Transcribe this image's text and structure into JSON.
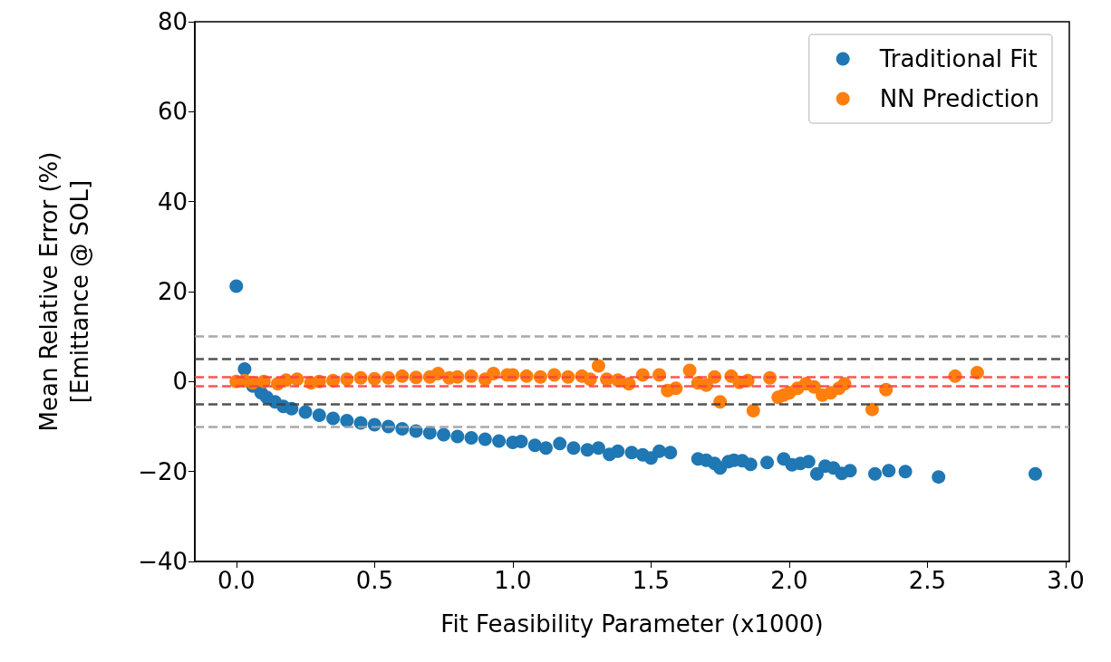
{
  "chart_data": {
    "type": "scatter",
    "xlabel": "Fit Feasibility Parameter (x1000)",
    "ylabel": "Mean Relative Error (%)\n[Emittance @ SOL]",
    "xlim": [
      -0.15,
      3.013
    ],
    "xticks": [
      {
        "value": 0,
        "label": "0.0"
      },
      {
        "value": 0.5,
        "label": "0.5"
      },
      {
        "value": 1,
        "label": "1.0"
      },
      {
        "value": 1.5,
        "label": "1.5"
      },
      {
        "value": 2,
        "label": "2.0"
      },
      {
        "value": 2.5,
        "label": "2.5"
      },
      {
        "value": 3,
        "label": "3.0"
      }
    ],
    "ylim": [
      -40,
      80
    ],
    "yticks": [
      {
        "value": -40,
        "label": "−40"
      },
      {
        "value": -20,
        "label": "−20"
      },
      0,
      20,
      40,
      60,
      80
    ],
    "grid": false,
    "legend": "top right",
    "marker": "circle",
    "series": [
      {
        "name": "Traditional Fit",
        "color": "#1f77b4",
        "x": [
          0,
          0.03,
          0.06,
          0.09,
          0.11,
          0.14,
          0.17,
          0.2,
          0.25,
          0.3,
          0.35,
          0.4,
          0.45,
          0.5,
          0.55,
          0.6,
          0.65,
          0.7,
          0.75,
          0.8,
          0.85,
          0.9,
          0.95,
          1.0,
          1.03,
          1.08,
          1.12,
          1.17,
          1.22,
          1.27,
          1.31,
          1.35,
          1.38,
          1.43,
          1.47,
          1.5,
          1.53,
          1.57,
          1.67,
          1.7,
          1.73,
          1.75,
          1.78,
          1.8,
          1.83,
          1.86,
          1.92,
          1.98,
          2.01,
          2.04,
          2.07,
          2.1,
          2.13,
          2.16,
          2.19,
          2.22,
          2.31,
          2.36,
          2.42,
          2.54,
          2.89
        ],
        "values": [
          21.2,
          2.8,
          -1,
          -2.5,
          -3.5,
          -4.5,
          -5.5,
          -6,
          -6.8,
          -7.5,
          -8.2,
          -8.7,
          -9.2,
          -9.6,
          -10,
          -10.5,
          -11,
          -11.4,
          -11.8,
          -12.2,
          -12.5,
          -12.8,
          -13.2,
          -13.5,
          -13.3,
          -14.2,
          -14.8,
          -13.8,
          -14.8,
          -15.2,
          -14.8,
          -16.2,
          -15.5,
          -15.8,
          -16.3,
          -17,
          -15.5,
          -15.8,
          -17.2,
          -17.5,
          -18.2,
          -19.2,
          -17.8,
          -17.5,
          -17.6,
          -18.4,
          -18,
          -17.2,
          -18.5,
          -18.2,
          -17.8,
          -20.5,
          -18.8,
          -19.2,
          -20.4,
          -19.8,
          -20.5,
          -19.8,
          -20,
          -21.2,
          -20.5
        ]
      },
      {
        "name": "NN Prediction",
        "color": "#ff7f0e",
        "x": [
          0,
          0.03,
          0.06,
          0.1,
          0.15,
          0.18,
          0.22,
          0.27,
          0.3,
          0.35,
          0.4,
          0.45,
          0.5,
          0.55,
          0.6,
          0.65,
          0.7,
          0.73,
          0.77,
          0.8,
          0.85,
          0.9,
          0.93,
          0.98,
          1.0,
          1.05,
          1.1,
          1.15,
          1.2,
          1.25,
          1.28,
          1.31,
          1.34,
          1.38,
          1.42,
          1.47,
          1.53,
          1.56,
          1.59,
          1.64,
          1.67,
          1.7,
          1.73,
          1.75,
          1.79,
          1.82,
          1.85,
          1.87,
          1.93,
          1.96,
          1.98,
          2.0,
          2.03,
          2.06,
          2.09,
          2.12,
          2.15,
          2.18,
          2.2,
          2.3,
          2.35,
          2.6,
          2.68
        ],
        "values": [
          0,
          0.2,
          -0.3,
          0,
          -0.5,
          0.3,
          0.5,
          -0.3,
          0,
          0.2,
          0.5,
          0.8,
          0.6,
          0.8,
          1.2,
          0.9,
          1,
          1.8,
          0.8,
          1,
          1.2,
          0.5,
          1.8,
          1.5,
          1.5,
          1.2,
          1,
          1.5,
          1,
          1.2,
          0.5,
          3.5,
          0.5,
          0.3,
          -0.5,
          1.5,
          1.5,
          -2,
          -1.5,
          2.5,
          -0.3,
          -0.8,
          1,
          -4.5,
          1.2,
          -0.2,
          0.2,
          -6.5,
          0.8,
          -3.5,
          -3,
          -2.5,
          -1.5,
          -0.5,
          -1.2,
          -3,
          -2.5,
          -1.5,
          -0.5,
          -6.2,
          -1.8,
          1.2,
          2
        ]
      }
    ],
    "ref_lines": [
      {
        "axis": "y",
        "value": 10,
        "color": "#a0a0a0",
        "line_style": "dashed"
      },
      {
        "axis": "y",
        "value": -10,
        "color": "#a0a0a0",
        "line_style": "dashed"
      },
      {
        "axis": "y",
        "value": 5,
        "color": "#404040",
        "line_style": "dashed"
      },
      {
        "axis": "y",
        "value": -5,
        "color": "#404040",
        "line_style": "dashed"
      },
      {
        "axis": "y",
        "value": 1,
        "color": "#ff4040",
        "line_style": "dashed"
      },
      {
        "axis": "y",
        "value": -1,
        "color": "#ff4040",
        "line_style": "dashed"
      }
    ]
  }
}
